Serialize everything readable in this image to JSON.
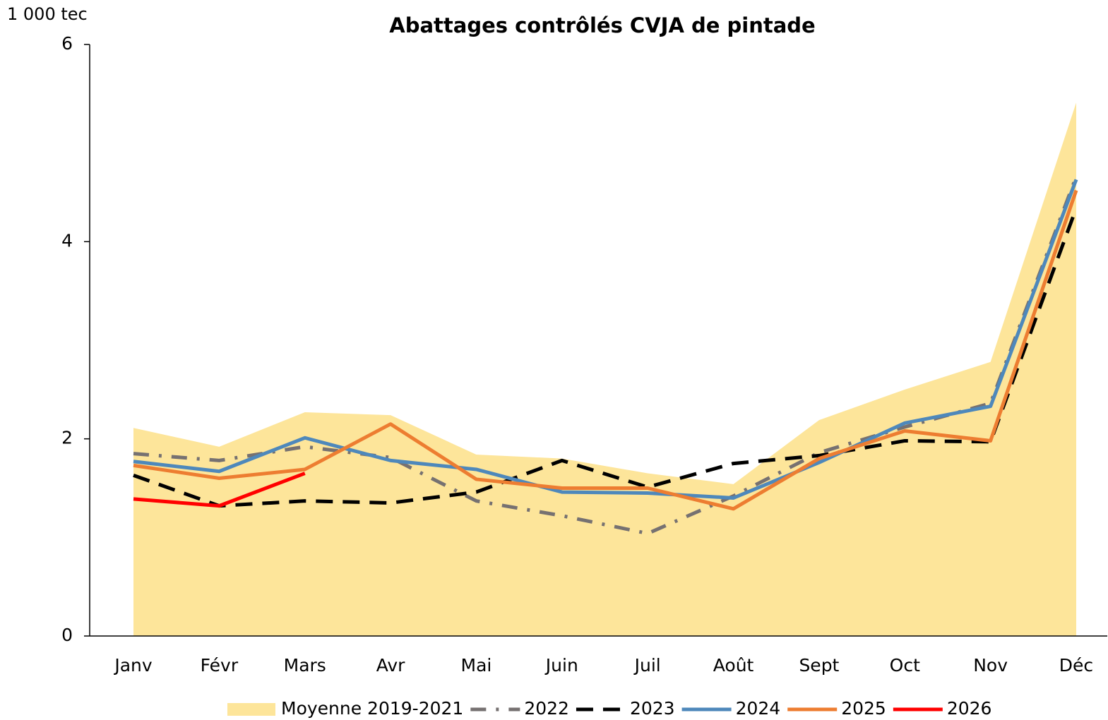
{
  "chart_data": {
    "type": "line",
    "title": "Abattages contrôlés CVJA de pintade",
    "y_unit_label": "1 000 tec",
    "categories": [
      "Janv",
      "Févr",
      "Mars",
      "Avr",
      "Mai",
      "Juin",
      "Juil",
      "Août",
      "Sept",
      "Oct",
      "Nov",
      "Déc"
    ],
    "ylim": [
      0,
      6
    ],
    "yticks": [
      0,
      2,
      4,
      6
    ],
    "grid": false,
    "legend": "bottom",
    "series": [
      {
        "name": "Moyenne 2019-2021",
        "color": "#fde59a",
        "kind": "area",
        "values": [
          2.11,
          1.92,
          2.27,
          2.24,
          1.84,
          1.8,
          1.65,
          1.54,
          2.19,
          2.5,
          2.78,
          5.41
        ]
      },
      {
        "name": "2022",
        "color": "#767171",
        "kind": "line",
        "dash": "dashdot",
        "values": [
          1.85,
          1.78,
          1.92,
          1.81,
          1.37,
          1.22,
          1.04,
          1.42,
          1.86,
          2.12,
          2.36,
          4.66
        ]
      },
      {
        "name": "2023",
        "color": "#000000",
        "kind": "line",
        "dash": "dash",
        "values": [
          1.63,
          1.32,
          1.37,
          1.35,
          1.46,
          1.78,
          1.51,
          1.75,
          1.83,
          1.98,
          1.97,
          4.34
        ]
      },
      {
        "name": "2024",
        "color": "#4e88bb",
        "kind": "line",
        "dash": "solid",
        "values": [
          1.77,
          1.67,
          2.01,
          1.78,
          1.69,
          1.46,
          1.45,
          1.4,
          1.76,
          2.16,
          2.33,
          4.63
        ]
      },
      {
        "name": "2025",
        "color": "#ed7d31",
        "kind": "line",
        "dash": "solid",
        "values": [
          1.73,
          1.6,
          1.69,
          2.15,
          1.59,
          1.5,
          1.5,
          1.29,
          1.8,
          2.08,
          1.98,
          4.52
        ]
      },
      {
        "name": "2026",
        "color": "#ff0000",
        "kind": "line",
        "dash": "solid",
        "values": [
          1.39,
          1.32,
          1.65,
          null,
          null,
          null,
          null,
          null,
          null,
          null,
          null,
          null
        ]
      }
    ]
  }
}
